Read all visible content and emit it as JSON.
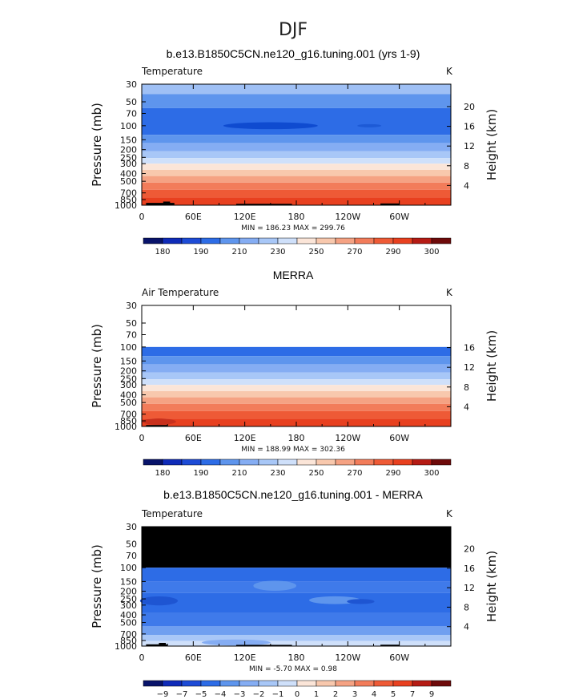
{
  "season_title": "DJF",
  "chart_data": [
    {
      "type": "heatmap",
      "title": "b.e13.B1850C5CN.ne120_g16.tuning.001 (yrs 1-9)",
      "left_label": "Temperature",
      "units": "K",
      "ylabel": "Pressure (mb)",
      "y2label": "Height (km)",
      "pressure_ticks": [
        "30",
        "50",
        "70",
        "100",
        "150",
        "200",
        "250",
        "300",
        "400",
        "500",
        "700",
        "850",
        "1000"
      ],
      "height_ticks": [
        "4",
        "8",
        "12",
        "16",
        "20"
      ],
      "x_ticks": [
        "0",
        "60E",
        "120E",
        "180",
        "120W",
        "60W"
      ],
      "min_max": "MIN = 186.23   MAX = 299.76",
      "levels": [
        "180",
        "190",
        "210",
        "230",
        "250",
        "270",
        "290",
        "300"
      ],
      "fill_top_pressure": 30,
      "layers": [
        {
          "p_top": 30,
          "p_bot": 40,
          "color": "#9fc0f5"
        },
        {
          "p_top": 40,
          "p_bot": 60,
          "color": "#5e95ed"
        },
        {
          "p_top": 60,
          "p_bot": 130,
          "color": "#2d6ce6"
        },
        {
          "p_top": 130,
          "p_bot": 165,
          "color": "#5e95ed"
        },
        {
          "p_top": 165,
          "p_bot": 210,
          "color": "#85adf3"
        },
        {
          "p_top": 210,
          "p_bot": 255,
          "color": "#a8c7f7"
        },
        {
          "p_top": 255,
          "p_bot": 300,
          "color": "#cfe0fa"
        },
        {
          "p_top": 300,
          "p_bot": 360,
          "color": "#fbe5d8"
        },
        {
          "p_top": 360,
          "p_bot": 430,
          "color": "#f8c8ad"
        },
        {
          "p_top": 430,
          "p_bot": 520,
          "color": "#f5a283"
        },
        {
          "p_top": 520,
          "p_bot": 640,
          "color": "#f27c5a"
        },
        {
          "p_top": 640,
          "p_bot": 800,
          "color": "#ee5a36"
        },
        {
          "p_top": 800,
          "p_bot": 1000,
          "color": "#e8401f"
        }
      ],
      "blobs": [
        {
          "lon": 150,
          "p": 100,
          "lon_w": 55,
          "p_h": 10,
          "color": "#0f4bd0"
        },
        {
          "lon": 265,
          "p": 100,
          "lon_w": 14,
          "p_h": 3,
          "color": "#1d5ad6"
        }
      ],
      "terrain": [
        {
          "lon1": 5,
          "lon2": 38,
          "p": 935
        },
        {
          "lon1": 25,
          "lon2": 33,
          "p": 900
        },
        {
          "lon1": 110,
          "lon2": 175,
          "p": 960
        },
        {
          "lon1": 278,
          "lon2": 300,
          "p": 950
        }
      ]
    },
    {
      "type": "heatmap",
      "title": "MERRA",
      "left_label": "Air Temperature",
      "units": "K",
      "ylabel": "Pressure (mb)",
      "y2label": "Height (km)",
      "pressure_ticks": [
        "30",
        "50",
        "70",
        "100",
        "150",
        "200",
        "250",
        "300",
        "400",
        "500",
        "700",
        "850",
        "1000"
      ],
      "height_ticks": [
        "4",
        "8",
        "12",
        "16"
      ],
      "x_ticks": [
        "0",
        "60E",
        "120E",
        "180",
        "120W",
        "60W"
      ],
      "min_max": "MIN = 188.99   MAX = 302.36",
      "levels": [
        "180",
        "190",
        "210",
        "230",
        "250",
        "270",
        "290",
        "300"
      ],
      "fill_top_pressure": 100,
      "layers": [
        {
          "p_top": 100,
          "p_bot": 130,
          "color": "#2d6ce6"
        },
        {
          "p_top": 130,
          "p_bot": 165,
          "color": "#5e95ed"
        },
        {
          "p_top": 165,
          "p_bot": 210,
          "color": "#85adf3"
        },
        {
          "p_top": 210,
          "p_bot": 255,
          "color": "#a8c7f7"
        },
        {
          "p_top": 255,
          "p_bot": 300,
          "color": "#cfe0fa"
        },
        {
          "p_top": 300,
          "p_bot": 360,
          "color": "#fbe5d8"
        },
        {
          "p_top": 360,
          "p_bot": 430,
          "color": "#f8c8ad"
        },
        {
          "p_top": 430,
          "p_bot": 520,
          "color": "#f5a283"
        },
        {
          "p_top": 520,
          "p_bot": 640,
          "color": "#f27c5a"
        },
        {
          "p_top": 640,
          "p_bot": 800,
          "color": "#ee5a36"
        },
        {
          "p_top": 800,
          "p_bot": 1000,
          "color": "#e8401f"
        }
      ],
      "blobs": [
        {
          "lon": 20,
          "p": 870,
          "lon_w": 20,
          "p_h": 80,
          "color": "#c9301c"
        }
      ],
      "terrain": [
        {
          "lon1": 5,
          "lon2": 30,
          "p": 960
        }
      ]
    },
    {
      "type": "heatmap",
      "title": "b.e13.B1850C5CN.ne120_g16.tuning.001 - MERRA",
      "left_label": "Temperature",
      "units": "K",
      "ylabel": "Pressure (mb)",
      "y2label": "Height (km)",
      "pressure_ticks": [
        "30",
        "50",
        "70",
        "100",
        "150",
        "200",
        "250",
        "300",
        "400",
        "500",
        "700",
        "850",
        "1000"
      ],
      "height_ticks": [
        "4",
        "8",
        "12",
        "16",
        "20"
      ],
      "x_ticks": [
        "0",
        "60E",
        "120E",
        "180",
        "120W",
        "60W"
      ],
      "min_max": "MIN =   -5.70   MAX =    0.98",
      "levels": [
        "−9",
        "−7",
        "−5",
        "−4",
        "−3",
        "−2",
        "−1",
        "0",
        "1",
        "2",
        "3",
        "4",
        "5",
        "7",
        "9"
      ],
      "fill_top_pressure": 100,
      "missing_above_pressure": 100,
      "layers": [
        {
          "p_top": 100,
          "p_bot": 150,
          "color": "#2d6ce6"
        },
        {
          "p_top": 150,
          "p_bot": 210,
          "color": "#3f7aea"
        },
        {
          "p_top": 210,
          "p_bot": 380,
          "color": "#2d6ce6"
        },
        {
          "p_top": 380,
          "p_bot": 560,
          "color": "#3f7aea"
        },
        {
          "p_top": 560,
          "p_bot": 720,
          "color": "#6f9ff0"
        },
        {
          "p_top": 720,
          "p_bot": 860,
          "color": "#a8c7f7"
        },
        {
          "p_top": 860,
          "p_bot": 1000,
          "color": "#cfe0fa"
        }
      ],
      "blobs": [
        {
          "lon": 20,
          "p": 265,
          "lon_w": 22,
          "p_h": 35,
          "color": "#1e55d2"
        },
        {
          "lon": 225,
          "p": 260,
          "lon_w": 30,
          "p_h": 30,
          "color": "#5e95ed"
        },
        {
          "lon": 155,
          "p": 170,
          "lon_w": 25,
          "p_h": 25,
          "color": "#5e95ed"
        },
        {
          "lon": 255,
          "p": 270,
          "lon_w": 16,
          "p_h": 20,
          "color": "#1e55d2"
        },
        {
          "lon": 110,
          "p": 900,
          "lon_w": 40,
          "p_h": 80,
          "color": "#85adf3"
        }
      ],
      "terrain": [
        {
          "lon1": 5,
          "lon2": 30,
          "p": 950
        },
        {
          "lon1": 20,
          "lon2": 28,
          "p": 910
        },
        {
          "lon1": 110,
          "lon2": 175,
          "p": 965
        },
        {
          "lon1": 278,
          "lon2": 300,
          "p": 960
        }
      ]
    }
  ],
  "colorbar_colors": {
    "temperature": [
      "#08136a",
      "#0f2bb8",
      "#1d4bd6",
      "#2d6ce6",
      "#5e95ed",
      "#85adf3",
      "#a8c7f7",
      "#cfe0fa",
      "#fbe5d8",
      "#f8c8ad",
      "#f5a283",
      "#f27c5a",
      "#ee5a36",
      "#e8401f",
      "#b51b14",
      "#6e0a0a"
    ],
    "difference": [
      "#08136a",
      "#0f2bb8",
      "#1d4bd6",
      "#2d6ce6",
      "#5e95ed",
      "#85adf3",
      "#a8c7f7",
      "#cfe0fa",
      "#fbe5d8",
      "#f8c8ad",
      "#f5a283",
      "#f27c5a",
      "#ee5a36",
      "#e8401f",
      "#b51b14",
      "#6e0a0a"
    ]
  }
}
